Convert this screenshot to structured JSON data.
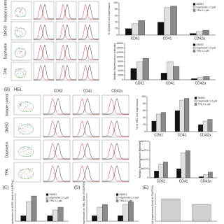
{
  "figure": {
    "panel_a": {
      "rows": [
        "Isotype control",
        "DMSO",
        "Daphnetin",
        "TPA"
      ]
    },
    "panel_b": {
      "label": "(B)",
      "cell_line": "HEL",
      "columns": [
        "CD62",
        "CD41",
        "CD42a"
      ],
      "rows": [
        "Isotype control",
        "DMSO",
        "Daphnetin",
        "TPA"
      ]
    },
    "panel_c": {
      "label": "(C)"
    },
    "panel_d": {
      "label": "(D)"
    },
    "panel_e": {
      "label": "(E)"
    }
  },
  "chart_data": [
    {
      "type": "bar",
      "y_label": "% of K562 cell expression",
      "categories": [
        "CD61",
        "CD41",
        "CD42a"
      ],
      "series": [
        {
          "name": "DMSO",
          "color": "#111111",
          "values": [
            20,
            40,
            5
          ]
        },
        {
          "name": "Daphnetin 1.0 μM",
          "color": "#e0e0e0",
          "values": [
            35,
            85,
            10
          ]
        },
        {
          "name": "TPA 0.1 μM",
          "color": "#8a8a8a",
          "values": [
            45,
            90,
            15
          ]
        }
      ],
      "ylim": [
        0,
        100
      ],
      "yticks": [
        0,
        20,
        40,
        60,
        80,
        100
      ],
      "legend": "upper right"
    },
    {
      "type": "bar",
      "y_label": "Median fluorescence intensity",
      "categories": [
        "CD61",
        "CD41",
        "CD42a"
      ],
      "series": [
        {
          "name": "DMSO",
          "color": "#111111",
          "values": [
            5000,
            3000,
            500
          ]
        },
        {
          "name": "Daphnetin 1.0 μM",
          "color": "#e0e0e0",
          "values": [
            8000,
            8000,
            1000
          ]
        },
        {
          "name": "TPA 0.1 μM",
          "color": "#8a8a8a",
          "values": [
            9500,
            6000,
            1500
          ]
        }
      ],
      "ylim": [
        0,
        16000
      ],
      "yticks": [
        0,
        2000,
        4000,
        6000,
        8000,
        10000,
        12000,
        14000,
        16000
      ],
      "legend": "upper right"
    },
    {
      "type": "bar",
      "y_label": "% of HEL cell expression",
      "categories": [
        "CD61",
        "CD41",
        "CD42a"
      ],
      "series": [
        {
          "name": "DMSO",
          "color": "#111111",
          "values": [
            30,
            60,
            20
          ]
        },
        {
          "name": "Daphnetin 1.0 μM",
          "color": "#e0e0e0",
          "values": [
            50,
            90,
            30
          ]
        },
        {
          "name": "TPA 0.1 μM",
          "color": "#8a8a8a",
          "values": [
            55,
            95,
            35
          ]
        }
      ],
      "ylim": [
        0,
        100
      ],
      "yticks": [
        0,
        20,
        40,
        60,
        80,
        100
      ],
      "legend": "upper right"
    },
    {
      "type": "bar",
      "y_label": "Median fluorescence intensity",
      "categories": [
        "CD61",
        "CD41",
        "CD42a"
      ],
      "series": [
        {
          "color": "#111111",
          "values": [
            3000,
            4000,
            500
          ]
        },
        {
          "color": "#e0e0e0",
          "values": [
            6000,
            11000,
            1500
          ]
        },
        {
          "color": "#8a8a8a",
          "values": [
            7000,
            12000,
            2500
          ]
        }
      ],
      "ylim": [
        0,
        16000
      ],
      "yticks": [
        0,
        {
          "value": 4000,
          "label": "4x10^3"
        },
        {
          "value": 8000,
          "label": "8x10^3"
        },
        {
          "value": 12000,
          "label": "1.2x10^4"
        },
        {
          "value": 16000,
          "label": "1.6x10^4"
        }
      ]
    },
    {
      "type": "bar",
      "y_label": "mRNA expression in K562 (fold of GAPDH)",
      "categories": [
        null,
        null
      ],
      "series": [
        {
          "name": "DMSO",
          "color": "#111111",
          "values": [
            1,
            1
          ]
        },
        {
          "name": "Daphnetin 1.0 μM",
          "color": "#e0e0e0",
          "values": [
            3.5,
            2
          ]
        },
        {
          "name": "TPA 0.1 μM",
          "color": "#8a8a8a",
          "values": [
            4.5,
            2.5
          ]
        }
      ],
      "ylim": [
        0,
        5
      ],
      "legend": "upper right"
    },
    {
      "type": "bar",
      "y_label": "mRNA expression in HEL (fold of GAPDH)",
      "categories": [
        null,
        null
      ],
      "series": [
        {
          "name": "DMSO",
          "color": "#111111",
          "values": [
            1,
            1
          ]
        },
        {
          "name": "Daphnetin 1.0 μM",
          "color": "#e0e0e0",
          "values": [
            2.5,
            3
          ]
        },
        {
          "name": "TPA 0.1 μM",
          "color": "#8a8a8a",
          "values": [
            3,
            3.5
          ]
        }
      ],
      "ylim": [
        0,
        5
      ],
      "legend": "upper right"
    },
    {
      "type": "bar",
      "y_label": "mRNA expression (fold of GAPDH)",
      "categories": [
        null,
        null
      ],
      "series": [
        {
          "color": "#d0d0d0",
          "values": [
            4,
            3
          ]
        }
      ],
      "ylim": [
        0,
        5
      ]
    }
  ]
}
